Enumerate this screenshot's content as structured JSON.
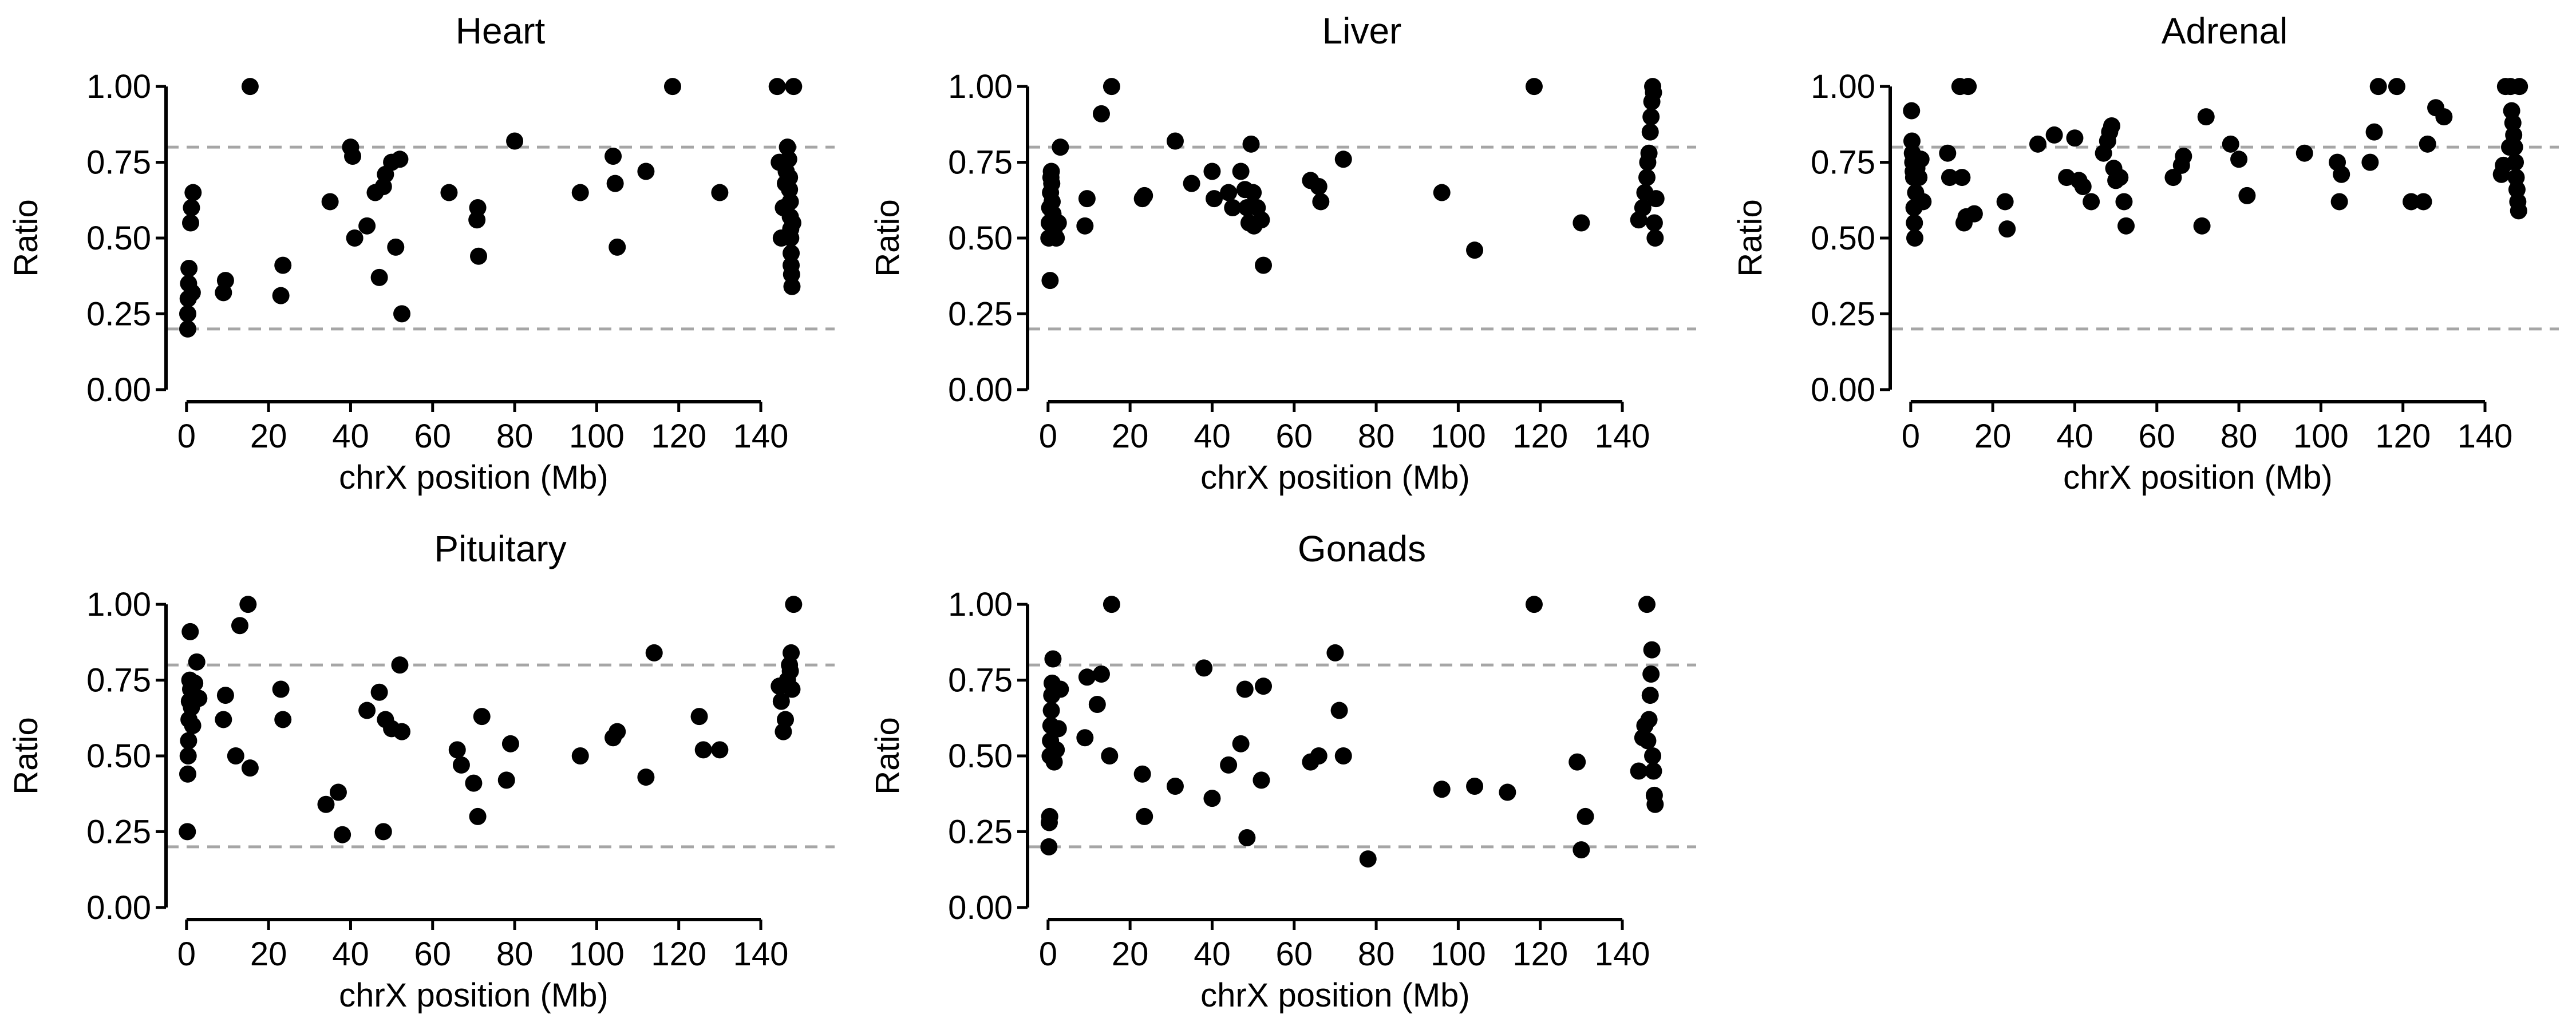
{
  "figure": {
    "point_color": "#000000",
    "reference_line_color": "#a6a6a6",
    "background": "#ffffff"
  },
  "chart_data": [
    {
      "type": "scatter",
      "title": "Heart",
      "xlabel": "chrX position (Mb)",
      "ylabel": "Ratio",
      "xlim": [
        -5,
        158
      ],
      "ylim": [
        -0.04,
        1.04
      ],
      "xticks": [
        0,
        20,
        40,
        60,
        80,
        100,
        120,
        140
      ],
      "yticks": [
        0,
        0.25,
        0.5,
        0.75,
        1
      ],
      "ytick_labels": [
        "0.00",
        "0.25",
        "0.50",
        "0.75",
        "1.00"
      ],
      "reference_lines": [
        0.2,
        0.8
      ],
      "grid": false,
      "x": [
        0.3,
        0.3,
        0.4,
        0.5,
        0.6,
        1,
        1.2,
        1.4,
        1.6,
        9,
        9.5,
        15.5,
        23,
        23.5,
        35,
        40,
        40.5,
        41,
        44,
        46,
        47,
        48,
        48.5,
        50,
        51,
        52,
        52.5,
        64,
        70.8,
        71,
        71.2,
        80,
        96,
        104,
        104.5,
        105,
        112,
        118.5,
        130,
        144,
        144.5,
        145,
        145.5,
        146,
        146.2,
        146.5,
        146.8,
        147,
        147,
        147.2,
        147.2,
        147.3,
        147.3,
        147.4,
        147.4,
        147.5,
        147.6,
        147.8,
        148
      ],
      "y": [
        0.2,
        0.25,
        0.3,
        0.35,
        0.4,
        0.55,
        0.6,
        0.32,
        0.65,
        0.32,
        0.36,
        1,
        0.31,
        0.41,
        0.62,
        0.8,
        0.77,
        0.5,
        0.54,
        0.65,
        0.37,
        0.67,
        0.71,
        0.75,
        0.47,
        0.76,
        0.25,
        0.65,
        0.56,
        0.6,
        0.44,
        0.82,
        0.65,
        0.77,
        0.68,
        0.47,
        0.72,
        1,
        0.65,
        1,
        0.75,
        0.5,
        0.6,
        0.68,
        0.72,
        0.8,
        0.76,
        0.7,
        0.66,
        0.62,
        0.57,
        0.53,
        0.5,
        0.45,
        0.41,
        0.38,
        0.34,
        0.55,
        1
      ]
    },
    {
      "type": "scatter",
      "title": "Liver",
      "xlabel": "chrX position (Mb)",
      "ylabel": "Ratio",
      "xlim": [
        -5,
        158
      ],
      "ylim": [
        -0.04,
        1.04
      ],
      "xticks": [
        0,
        20,
        40,
        60,
        80,
        100,
        120,
        140
      ],
      "yticks": [
        0,
        0.25,
        0.5,
        0.75,
        1
      ],
      "ytick_labels": [
        "0.00",
        "0.25",
        "0.50",
        "0.75",
        "1.00"
      ],
      "reference_lines": [
        0.2,
        0.8
      ],
      "grid": false,
      "x": [
        0.2,
        0.3,
        0.4,
        0.5,
        0.6,
        0.7,
        0.8,
        0.9,
        1,
        1.2,
        1.5,
        2,
        2.5,
        3,
        9,
        9.5,
        13,
        15.5,
        23,
        23.5,
        31,
        35,
        40,
        40.5,
        44,
        45,
        47,
        48,
        48.5,
        49,
        49.5,
        50,
        50.2,
        51,
        52,
        52.5,
        64,
        66,
        66.5,
        72,
        96,
        104,
        118.5,
        130,
        144,
        145,
        145.5,
        146,
        146.2,
        146.5,
        146.8,
        147,
        147.2,
        147.4,
        147.6,
        147.8,
        148,
        148.2
      ],
      "y": [
        0.5,
        0.55,
        0.6,
        0.36,
        0.65,
        0.7,
        0.72,
        0.68,
        0.62,
        0.58,
        0.53,
        0.5,
        0.55,
        0.8,
        0.54,
        0.63,
        0.91,
        1,
        0.63,
        0.64,
        0.82,
        0.68,
        0.72,
        0.63,
        0.65,
        0.6,
        0.72,
        0.66,
        0.6,
        0.55,
        0.81,
        0.65,
        0.54,
        0.6,
        0.56,
        0.41,
        0.69,
        0.67,
        0.62,
        0.76,
        0.65,
        0.46,
        1,
        0.55,
        0.56,
        0.6,
        0.65,
        0.7,
        0.75,
        0.78,
        0.85,
        0.9,
        0.95,
        1,
        0.98,
        0.55,
        0.5,
        0.63
      ]
    },
    {
      "type": "scatter",
      "title": "Adrenal",
      "xlabel": "chrX position (Mb)",
      "ylabel": "Ratio",
      "xlim": [
        -5,
        158
      ],
      "ylim": [
        -0.04,
        1.04
      ],
      "xticks": [
        0,
        20,
        40,
        60,
        80,
        100,
        120,
        140
      ],
      "yticks": [
        0,
        0.25,
        0.5,
        0.75,
        1
      ],
      "ytick_labels": [
        "0.00",
        "0.25",
        "0.50",
        "0.75",
        "1.00"
      ],
      "reference_lines": [
        0.2,
        0.8
      ],
      "grid": false,
      "x": [
        0.2,
        0.3,
        0.4,
        0.5,
        0.6,
        0.7,
        0.8,
        0.9,
        1,
        1.2,
        1.5,
        2,
        2.5,
        3,
        9,
        9.5,
        12,
        12.5,
        13,
        13.5,
        14,
        15.5,
        23,
        23.5,
        31,
        35,
        38,
        40,
        41,
        42,
        44,
        47,
        48,
        48.5,
        49,
        49.5,
        50,
        51,
        52,
        52.5,
        64,
        66,
        66.5,
        71,
        72,
        78,
        80,
        82,
        96,
        104,
        104.5,
        105,
        112,
        113,
        114,
        118.5,
        122,
        125,
        126,
        128,
        130,
        144,
        144.5,
        145,
        146,
        146.2,
        146.5,
        146.8,
        147,
        147.2,
        147.4,
        147.6,
        147.8,
        148,
        148.2,
        148.4
      ],
      "y": [
        0.92,
        0.82,
        0.78,
        0.75,
        0.72,
        0.7,
        0.6,
        0.55,
        0.5,
        0.65,
        0.73,
        0.7,
        0.76,
        0.62,
        0.78,
        0.7,
        1,
        0.7,
        0.55,
        0.57,
        1,
        0.58,
        0.62,
        0.53,
        0.81,
        0.84,
        0.7,
        0.83,
        0.69,
        0.67,
        0.62,
        0.78,
        0.82,
        0.85,
        0.87,
        0.73,
        0.69,
        0.7,
        0.62,
        0.54,
        0.7,
        0.74,
        0.77,
        0.54,
        0.9,
        0.81,
        0.76,
        0.64,
        0.78,
        0.75,
        0.62,
        0.71,
        0.75,
        0.85,
        1,
        1,
        0.62,
        0.62,
        0.81,
        0.93,
        0.9,
        0.71,
        0.74,
        1,
        0.8,
        1,
        0.92,
        0.88,
        0.84,
        0.8,
        0.75,
        0.7,
        0.66,
        0.62,
        0.59,
        1
      ]
    },
    {
      "type": "scatter",
      "title": "Pituitary",
      "xlabel": "chrX position (Mb)",
      "ylabel": "Ratio",
      "xlim": [
        -5,
        158
      ],
      "ylim": [
        -0.04,
        1.04
      ],
      "xticks": [
        0,
        20,
        40,
        60,
        80,
        100,
        120,
        140
      ],
      "yticks": [
        0,
        0.25,
        0.5,
        0.75,
        1
      ],
      "ytick_labels": [
        "0.00",
        "0.25",
        "0.50",
        "0.75",
        "1.00"
      ],
      "reference_lines": [
        0.2,
        0.8
      ],
      "grid": false,
      "x": [
        0.2,
        0.3,
        0.4,
        0.5,
        0.6,
        0.7,
        0.8,
        0.9,
        1,
        1.2,
        1.5,
        2,
        2.5,
        3,
        9,
        9.5,
        12,
        13,
        15,
        15.5,
        23,
        23.5,
        34,
        37,
        38,
        44,
        47,
        48,
        48.5,
        50,
        52,
        52.5,
        66,
        67,
        70,
        71,
        72,
        78,
        79,
        96,
        104,
        105,
        112,
        114,
        125,
        126,
        130,
        144.5,
        145,
        145.5,
        146,
        146.5,
        147,
        147.2,
        147.4,
        147.6,
        148
      ],
      "y": [
        0.25,
        0.44,
        0.5,
        0.55,
        0.62,
        0.68,
        0.75,
        0.91,
        0.72,
        0.66,
        0.6,
        0.74,
        0.81,
        0.69,
        0.62,
        0.7,
        0.5,
        0.93,
        1,
        0.46,
        0.72,
        0.62,
        0.34,
        0.38,
        0.24,
        0.65,
        0.71,
        0.25,
        0.62,
        0.59,
        0.8,
        0.58,
        0.52,
        0.47,
        0.41,
        0.3,
        0.63,
        0.42,
        0.54,
        0.5,
        0.56,
        0.58,
        0.43,
        0.84,
        0.63,
        0.52,
        0.52,
        0.73,
        0.68,
        0.58,
        0.62,
        0.75,
        0.8,
        0.78,
        0.84,
        0.72,
        1
      ]
    },
    {
      "type": "scatter",
      "title": "Gonads",
      "xlabel": "chrX position (Mb)",
      "ylabel": "Ratio",
      "xlim": [
        -5,
        158
      ],
      "ylim": [
        -0.04,
        1.04
      ],
      "xticks": [
        0,
        20,
        40,
        60,
        80,
        100,
        120,
        140
      ],
      "yticks": [
        0,
        0.25,
        0.5,
        0.75,
        1
      ],
      "ytick_labels": [
        "0.00",
        "0.25",
        "0.50",
        "0.75",
        "1.00"
      ],
      "reference_lines": [
        0.2,
        0.8
      ],
      "grid": false,
      "x": [
        0.2,
        0.3,
        0.4,
        0.5,
        0.6,
        0.7,
        0.8,
        0.9,
        1,
        1.2,
        1.5,
        2,
        2.5,
        3,
        9,
        9.5,
        12,
        13,
        15,
        15.5,
        23,
        23.5,
        31,
        38,
        40,
        44,
        47,
        48,
        48.5,
        52,
        52.5,
        64,
        66,
        70,
        71,
        72,
        78,
        96,
        104,
        112,
        118.5,
        129,
        130,
        131,
        144,
        145,
        145.5,
        146,
        146.2,
        146.5,
        146.8,
        147,
        147.2,
        147.4,
        147.6,
        147.8,
        148
      ],
      "y": [
        0.2,
        0.28,
        0.3,
        0.5,
        0.55,
        0.6,
        0.65,
        0.7,
        0.74,
        0.82,
        0.48,
        0.52,
        0.59,
        0.72,
        0.56,
        0.76,
        0.67,
        0.77,
        0.5,
        1,
        0.44,
        0.3,
        0.4,
        0.79,
        0.36,
        0.47,
        0.54,
        0.72,
        0.23,
        0.42,
        0.73,
        0.48,
        0.5,
        0.84,
        0.65,
        0.5,
        0.16,
        0.39,
        0.4,
        0.38,
        1,
        0.48,
        0.19,
        0.3,
        0.45,
        0.56,
        0.6,
        1,
        0.55,
        0.62,
        0.7,
        0.77,
        0.85,
        0.5,
        0.45,
        0.37,
        0.34
      ]
    }
  ]
}
